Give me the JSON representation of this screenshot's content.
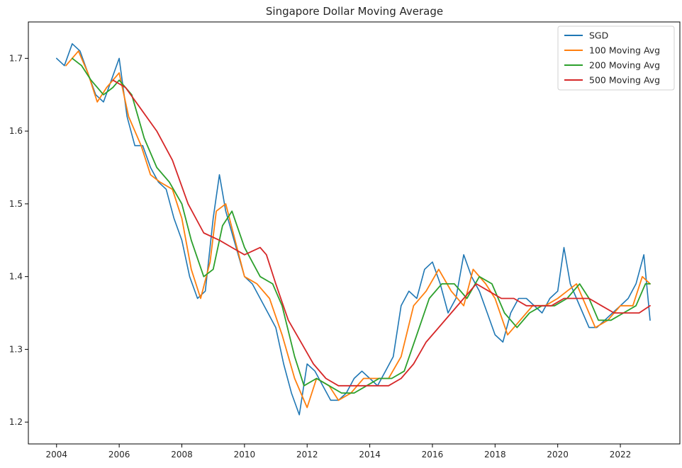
{
  "chart_data": {
    "type": "line",
    "title": "Singapore Dollar Moving Average",
    "xlabel": "",
    "ylabel": "",
    "xlim": [
      2003.1,
      2023.9
    ],
    "ylim": [
      1.17,
      1.75
    ],
    "x_ticks": [
      2004,
      2006,
      2008,
      2010,
      2012,
      2014,
      2016,
      2018,
      2020,
      2022
    ],
    "y_ticks": [
      1.2,
      1.3,
      1.4,
      1.5,
      1.6,
      1.7
    ],
    "y_tick_labels": [
      "1.2",
      "1.3",
      "1.4",
      "1.5",
      "1.6",
      "1.7"
    ],
    "grid": false,
    "legend": "top-right",
    "series": [
      {
        "name": "SGD",
        "color": "#1f77b4",
        "x": [
          2004.0,
          2004.25,
          2004.5,
          2004.75,
          2005.0,
          2005.25,
          2005.5,
          2005.75,
          2006.0,
          2006.25,
          2006.5,
          2006.75,
          2007.0,
          2007.25,
          2007.5,
          2007.75,
          2008.0,
          2008.25,
          2008.5,
          2008.75,
          2009.0,
          2009.2,
          2009.4,
          2009.6,
          2009.8,
          2010.0,
          2010.25,
          2010.5,
          2010.75,
          2011.0,
          2011.25,
          2011.5,
          2011.75,
          2012.0,
          2012.25,
          2012.5,
          2012.75,
          2013.0,
          2013.25,
          2013.5,
          2013.75,
          2014.0,
          2014.25,
          2014.5,
          2014.75,
          2015.0,
          2015.25,
          2015.5,
          2015.75,
          2016.0,
          2016.25,
          2016.5,
          2016.75,
          2017.0,
          2017.25,
          2017.5,
          2017.75,
          2018.0,
          2018.25,
          2018.5,
          2018.75,
          2019.0,
          2019.25,
          2019.5,
          2019.75,
          2020.0,
          2020.2,
          2020.4,
          2020.6,
          2020.8,
          2021.0,
          2021.25,
          2021.5,
          2021.75,
          2022.0,
          2022.25,
          2022.5,
          2022.75,
          2022.95
        ],
        "values": [
          1.7,
          1.69,
          1.72,
          1.71,
          1.68,
          1.65,
          1.64,
          1.67,
          1.7,
          1.62,
          1.58,
          1.58,
          1.55,
          1.53,
          1.52,
          1.48,
          1.45,
          1.4,
          1.37,
          1.38,
          1.48,
          1.54,
          1.49,
          1.46,
          1.43,
          1.4,
          1.39,
          1.37,
          1.35,
          1.33,
          1.28,
          1.24,
          1.21,
          1.28,
          1.27,
          1.25,
          1.23,
          1.23,
          1.24,
          1.26,
          1.27,
          1.26,
          1.25,
          1.27,
          1.29,
          1.36,
          1.38,
          1.37,
          1.41,
          1.42,
          1.39,
          1.35,
          1.37,
          1.43,
          1.4,
          1.38,
          1.35,
          1.32,
          1.31,
          1.35,
          1.37,
          1.37,
          1.36,
          1.35,
          1.37,
          1.38,
          1.44,
          1.39,
          1.37,
          1.35,
          1.33,
          1.33,
          1.34,
          1.35,
          1.36,
          1.37,
          1.39,
          1.43,
          1.34
        ]
      },
      {
        "name": "100 Moving Avg",
        "color": "#ff7f0e",
        "x": [
          2004.3,
          2004.7,
          2005.0,
          2005.3,
          2005.6,
          2006.0,
          2006.3,
          2006.7,
          2007.0,
          2007.3,
          2007.7,
          2008.0,
          2008.3,
          2008.6,
          2008.9,
          2009.1,
          2009.4,
          2009.7,
          2010.0,
          2010.4,
          2010.8,
          2011.2,
          2011.6,
          2012.0,
          2012.3,
          2012.7,
          2013.0,
          2013.4,
          2013.8,
          2014.2,
          2014.6,
          2015.0,
          2015.4,
          2015.8,
          2016.2,
          2016.6,
          2017.0,
          2017.3,
          2017.7,
          2018.0,
          2018.4,
          2018.8,
          2019.2,
          2019.6,
          2020.0,
          2020.3,
          2020.6,
          2020.9,
          2021.2,
          2021.6,
          2022.0,
          2022.4,
          2022.7,
          2022.95
        ],
        "values": [
          1.69,
          1.71,
          1.68,
          1.64,
          1.66,
          1.68,
          1.62,
          1.58,
          1.54,
          1.53,
          1.52,
          1.48,
          1.41,
          1.37,
          1.42,
          1.49,
          1.5,
          1.45,
          1.4,
          1.39,
          1.37,
          1.32,
          1.26,
          1.22,
          1.26,
          1.25,
          1.23,
          1.24,
          1.26,
          1.26,
          1.26,
          1.29,
          1.36,
          1.38,
          1.41,
          1.38,
          1.36,
          1.41,
          1.39,
          1.37,
          1.32,
          1.34,
          1.36,
          1.36,
          1.37,
          1.38,
          1.39,
          1.36,
          1.33,
          1.34,
          1.36,
          1.36,
          1.4,
          1.39
        ]
      },
      {
        "name": "200 Moving Avg",
        "color": "#2ca02c",
        "x": [
          2004.5,
          2004.8,
          2005.1,
          2005.5,
          2005.8,
          2006.0,
          2006.4,
          2006.8,
          2007.2,
          2007.6,
          2008.0,
          2008.3,
          2008.7,
          2009.0,
          2009.3,
          2009.6,
          2010.0,
          2010.5,
          2010.9,
          2011.2,
          2011.6,
          2011.9,
          2012.3,
          2012.7,
          2013.1,
          2013.5,
          2013.9,
          2014.3,
          2014.7,
          2015.1,
          2015.5,
          2015.9,
          2016.3,
          2016.7,
          2017.1,
          2017.5,
          2017.9,
          2018.3,
          2018.7,
          2019.1,
          2019.5,
          2019.9,
          2020.3,
          2020.7,
          2021.0,
          2021.3,
          2021.7,
          2022.1,
          2022.5,
          2022.8,
          2022.95
        ],
        "values": [
          1.7,
          1.69,
          1.67,
          1.65,
          1.66,
          1.67,
          1.65,
          1.59,
          1.55,
          1.53,
          1.5,
          1.45,
          1.4,
          1.41,
          1.47,
          1.49,
          1.44,
          1.4,
          1.39,
          1.36,
          1.29,
          1.25,
          1.26,
          1.25,
          1.24,
          1.24,
          1.25,
          1.26,
          1.26,
          1.27,
          1.32,
          1.37,
          1.39,
          1.39,
          1.37,
          1.4,
          1.39,
          1.35,
          1.33,
          1.35,
          1.36,
          1.36,
          1.37,
          1.39,
          1.37,
          1.34,
          1.34,
          1.35,
          1.36,
          1.39,
          1.39
        ]
      },
      {
        "name": "500 Moving Avg",
        "color": "#d62728",
        "x": [
          2005.8,
          2006.2,
          2006.7,
          2007.2,
          2007.7,
          2008.2,
          2008.7,
          2009.2,
          2009.6,
          2010.0,
          2010.5,
          2010.7,
          2011.0,
          2011.4,
          2011.8,
          2012.2,
          2012.6,
          2013.0,
          2013.4,
          2013.8,
          2014.2,
          2014.6,
          2015.0,
          2015.4,
          2015.8,
          2016.2,
          2016.6,
          2017.0,
          2017.4,
          2017.8,
          2018.2,
          2018.6,
          2019.0,
          2019.4,
          2019.8,
          2020.2,
          2020.6,
          2021.0,
          2021.4,
          2021.8,
          2022.2,
          2022.6,
          2022.95
        ],
        "values": [
          1.67,
          1.66,
          1.63,
          1.6,
          1.56,
          1.5,
          1.46,
          1.45,
          1.44,
          1.43,
          1.44,
          1.43,
          1.39,
          1.34,
          1.31,
          1.28,
          1.26,
          1.25,
          1.25,
          1.25,
          1.25,
          1.25,
          1.26,
          1.28,
          1.31,
          1.33,
          1.35,
          1.37,
          1.39,
          1.38,
          1.37,
          1.37,
          1.36,
          1.36,
          1.36,
          1.37,
          1.37,
          1.37,
          1.36,
          1.35,
          1.35,
          1.35,
          1.36
        ]
      }
    ]
  }
}
